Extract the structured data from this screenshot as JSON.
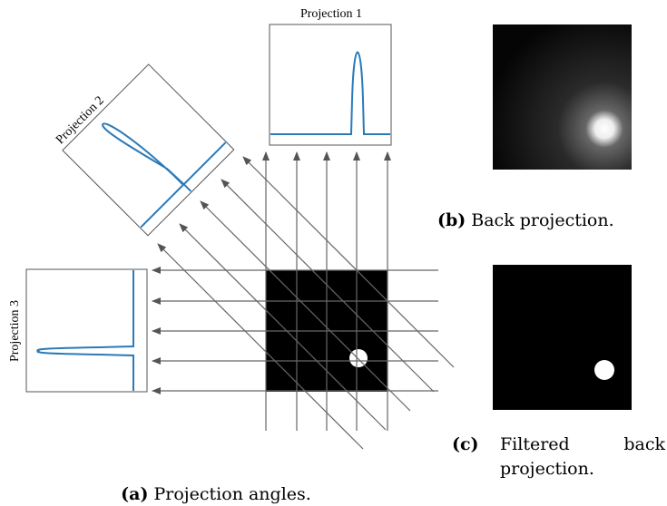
{
  "panel_a": {
    "projections": [
      "Projection 1",
      "Projection 2",
      "Projection 3"
    ],
    "label": "(a)",
    "caption": "Projection angles."
  },
  "panel_b": {
    "label": "(b)",
    "caption": "Back projection."
  },
  "panel_c": {
    "label": "(c)",
    "caption_words": [
      "Filtered",
      "back",
      "projection."
    ]
  }
}
